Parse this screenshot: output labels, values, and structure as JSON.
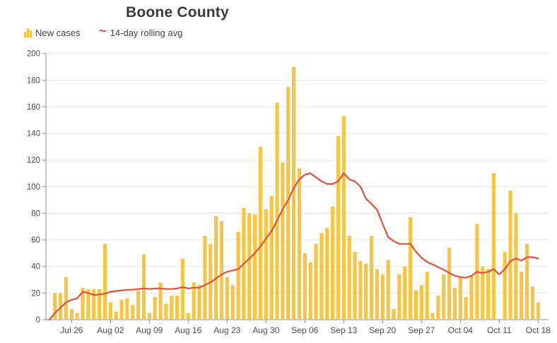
{
  "header": {
    "title": "Boone County"
  },
  "legend": {
    "items": [
      {
        "label": "New cases",
        "icon": "bar-chart-icon",
        "color": "#F5C543"
      },
      {
        "label": "14-day rolling avg",
        "icon": "squiggle-line-icon",
        "color": "#E0503A"
      }
    ]
  },
  "chart_data": {
    "type": "bar",
    "title": "Boone County",
    "xlabel": "",
    "ylabel": "",
    "ylim": [
      0,
      200
    ],
    "grid": "horizontal",
    "legend_position": "top-left",
    "y_ticks": [
      0,
      20,
      40,
      60,
      80,
      100,
      120,
      140,
      160,
      180,
      200
    ],
    "x_tick_labels": [
      "Jul 26",
      "Aug 02",
      "Aug 09",
      "Aug 16",
      "Aug 23",
      "Aug 30",
      "Sep 06",
      "Sep 13",
      "Sep 20",
      "Sep 27",
      "Oct 04",
      "Oct 11",
      "Oct 18"
    ],
    "x_tick_indices": [
      4,
      11,
      18,
      25,
      32,
      39,
      46,
      53,
      60,
      67,
      74,
      81,
      88
    ],
    "categories": [
      "Jul 22",
      "Jul 23",
      "Jul 24",
      "Jul 25",
      "Jul 26",
      "Jul 27",
      "Jul 28",
      "Jul 29",
      "Jul 30",
      "Jul 31",
      "Aug 01",
      "Aug 02",
      "Aug 03",
      "Aug 04",
      "Aug 05",
      "Aug 06",
      "Aug 07",
      "Aug 08",
      "Aug 09",
      "Aug 10",
      "Aug 11",
      "Aug 12",
      "Aug 13",
      "Aug 14",
      "Aug 15",
      "Aug 16",
      "Aug 17",
      "Aug 18",
      "Aug 19",
      "Aug 20",
      "Aug 21",
      "Aug 22",
      "Aug 23",
      "Aug 24",
      "Aug 25",
      "Aug 26",
      "Aug 27",
      "Aug 28",
      "Aug 29",
      "Aug 30",
      "Aug 31",
      "Sep 01",
      "Sep 02",
      "Sep 03",
      "Sep 04",
      "Sep 05",
      "Sep 06",
      "Sep 07",
      "Sep 08",
      "Sep 09",
      "Sep 10",
      "Sep 11",
      "Sep 12",
      "Sep 13",
      "Sep 14",
      "Sep 15",
      "Sep 16",
      "Sep 17",
      "Sep 18",
      "Sep 19",
      "Sep 20",
      "Sep 21",
      "Sep 22",
      "Sep 23",
      "Sep 24",
      "Sep 25",
      "Sep 26",
      "Sep 27",
      "Sep 28",
      "Sep 29",
      "Sep 30",
      "Oct 01",
      "Oct 02",
      "Oct 03",
      "Oct 04",
      "Oct 05",
      "Oct 06",
      "Oct 07",
      "Oct 08",
      "Oct 09",
      "Oct 10",
      "Oct 11",
      "Oct 12",
      "Oct 13",
      "Oct 14",
      "Oct 15",
      "Oct 16",
      "Oct 17",
      "Oct 18"
    ],
    "series": [
      {
        "name": "New cases",
        "type": "bar",
        "color": "#F5C543",
        "values": [
          0,
          20,
          20,
          32,
          8,
          5,
          24,
          23,
          23,
          23,
          57,
          13,
          6,
          15,
          16,
          11,
          22,
          49,
          5,
          17,
          28,
          12,
          18,
          18,
          46,
          5,
          28,
          26,
          63,
          57,
          78,
          74,
          32,
          26,
          66,
          84,
          80,
          79,
          130,
          83,
          93,
          163,
          118,
          175,
          190,
          114,
          50,
          43,
          57,
          65,
          69,
          85,
          138,
          153,
          63,
          51,
          44,
          42,
          63,
          38,
          34,
          45,
          8,
          34,
          40,
          77,
          22,
          26,
          36,
          5,
          18,
          34,
          54,
          24,
          32,
          17,
          33,
          72,
          40,
          38,
          110,
          0,
          51,
          97,
          80,
          36,
          57,
          25,
          13
        ]
      },
      {
        "name": "14-day rolling avg",
        "type": "line",
        "color": "#E0503A",
        "values": [
          0,
          5,
          9,
          13,
          15,
          16,
          21,
          20,
          18.5,
          19,
          19.5,
          21,
          21.5,
          22,
          22.5,
          22.5,
          23,
          23.5,
          23,
          23.5,
          23.5,
          23,
          23,
          23.5,
          24.5,
          23.5,
          24,
          24,
          26,
          28,
          31,
          34,
          36,
          37,
          38,
          42,
          46,
          50,
          55,
          61,
          66.5,
          74.5,
          83,
          90,
          99,
          105.5,
          109,
          110,
          107,
          104,
          102,
          102,
          104,
          110,
          105.5,
          104,
          100,
          91,
          87,
          82.5,
          72,
          62,
          59,
          57,
          57,
          57,
          51,
          46.5,
          43.5,
          41.5,
          39.5,
          37.5,
          35,
          33,
          32,
          31.5,
          33,
          36,
          35,
          36,
          38,
          34,
          38,
          44,
          46,
          44.5,
          47,
          47,
          46
        ]
      }
    ]
  },
  "colors": {
    "bar": "#F5C543",
    "line": "#E0503A",
    "grid": "#E4E4E4",
    "axis": "#8C8C8C",
    "tick_text": "#4d4d4d",
    "title_text": "#3B3B3B"
  }
}
